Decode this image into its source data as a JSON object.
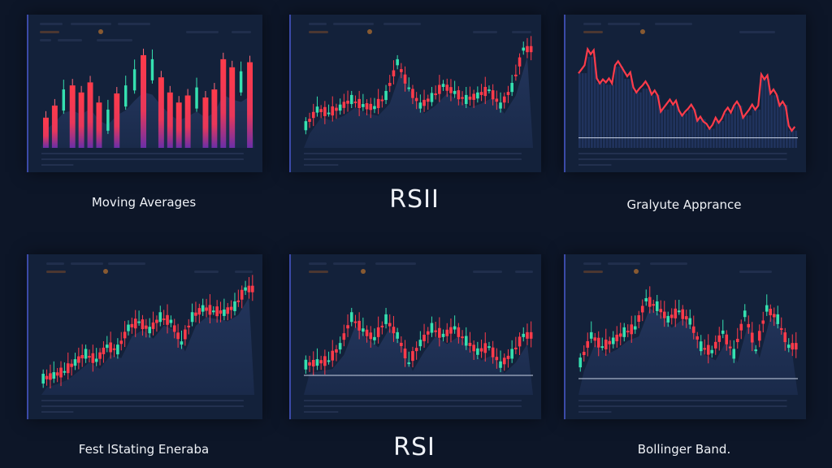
{
  "colors": {
    "background": "#0d1628",
    "panel": "#13213a",
    "bull": "#35e0b0",
    "bear": "#ff3b4a",
    "accent_border": "#3b4aa8",
    "baseline": "#c9d2e6"
  },
  "captions": [
    {
      "id": "p1",
      "label": "Moving Averages"
    },
    {
      "id": "p2",
      "label": "RSII"
    },
    {
      "id": "p3",
      "label": "Gralyute Apprance"
    },
    {
      "id": "p4",
      "label": "Fest lStating Eneraba"
    },
    {
      "id": "p5",
      "label": "RSI"
    },
    {
      "id": "p6",
      "label": "Bollinger Band."
    }
  ],
  "chart_data": [
    {
      "type": "bar",
      "title": "Moving Averages",
      "style": "gradient red bars with few candlesticks",
      "categories": [
        "1",
        "2",
        "3",
        "4",
        "5",
        "6",
        "7",
        "8",
        "9",
        "10",
        "11",
        "12",
        "13",
        "14",
        "15",
        "16",
        "17",
        "18",
        "19",
        "20",
        "21",
        "22",
        "23",
        "24"
      ],
      "values": [
        30,
        42,
        58,
        62,
        55,
        65,
        45,
        38,
        54,
        62,
        78,
        92,
        88,
        70,
        55,
        45,
        52,
        60,
        50,
        58,
        88,
        80,
        76,
        85
      ],
      "ylim": [
        0,
        100
      ],
      "grid": false
    },
    {
      "type": "line",
      "title": "RSII",
      "style": "candlestick (green/red) over volume bars",
      "x": [
        1,
        2,
        3,
        4,
        5,
        6,
        7,
        8,
        9,
        10,
        11,
        12,
        13,
        14,
        15,
        16,
        17,
        18,
        19,
        20
      ],
      "values": [
        22,
        38,
        35,
        40,
        48,
        42,
        40,
        52,
        85,
        60,
        42,
        50,
        62,
        55,
        48,
        52,
        58,
        42,
        60,
        98
      ],
      "ylim": [
        0,
        100
      ],
      "grid": false
    },
    {
      "type": "area",
      "title": "Gralyute Apprance",
      "style": "red price line over blue volume bars with horizontal baseline",
      "x": [
        1,
        2,
        3,
        4,
        5,
        6,
        7,
        8,
        9,
        10,
        11,
        12,
        13,
        14,
        15,
        16,
        17,
        18,
        19,
        20,
        21,
        22,
        23,
        24
      ],
      "values": [
        78,
        95,
        68,
        66,
        85,
        72,
        58,
        62,
        55,
        40,
        45,
        36,
        40,
        30,
        20,
        28,
        36,
        44,
        34,
        40,
        72,
        55,
        45,
        18
      ],
      "baseline": 10,
      "ylim": [
        0,
        100
      ],
      "grid": false
    },
    {
      "type": "line",
      "title": "Fest lStating Eneraba",
      "style": "candlestick uptrend with area fill",
      "x": [
        1,
        2,
        3,
        4,
        5,
        6,
        7,
        8,
        9,
        10,
        11,
        12,
        13,
        14,
        15,
        16,
        17,
        18,
        19,
        20
      ],
      "values": [
        15,
        18,
        22,
        30,
        38,
        32,
        45,
        42,
        62,
        68,
        60,
        72,
        68,
        48,
        72,
        80,
        78,
        76,
        82,
        98
      ],
      "ylim": [
        0,
        100
      ],
      "grid": false
    },
    {
      "type": "line",
      "title": "RSI",
      "style": "candlestick oscillating with area fill and baseline",
      "x": [
        1,
        2,
        3,
        4,
        5,
        6,
        7,
        8,
        9,
        10,
        11,
        12,
        13,
        14,
        15,
        16,
        17,
        18,
        19,
        20
      ],
      "values": [
        28,
        30,
        32,
        45,
        72,
        60,
        52,
        70,
        55,
        30,
        48,
        62,
        55,
        62,
        50,
        40,
        45,
        28,
        38,
        55
      ],
      "baseline": 18,
      "ylim": [
        0,
        100
      ],
      "grid": false
    },
    {
      "type": "line",
      "title": "Bollinger Band.",
      "style": "candlestick with area fill and baseline",
      "x": [
        1,
        2,
        3,
        4,
        5,
        6,
        7,
        8,
        9,
        10,
        11,
        12,
        13,
        14,
        15,
        16,
        17,
        18,
        19,
        20
      ],
      "values": [
        30,
        55,
        45,
        50,
        58,
        62,
        88,
        82,
        70,
        78,
        68,
        45,
        40,
        58,
        38,
        75,
        42,
        80,
        70,
        45
      ],
      "baseline": 15,
      "ylim": [
        0,
        100
      ],
      "grid": false
    }
  ]
}
